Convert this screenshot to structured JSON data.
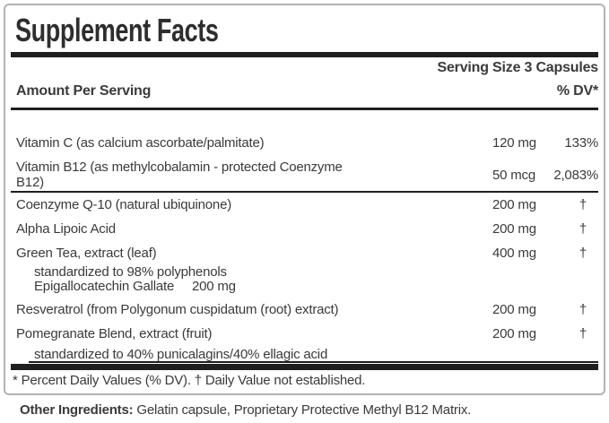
{
  "colors": {
    "text": "#3a3a3a",
    "rule": "#1f1f1f",
    "border": "#b3b3b3",
    "bg": "#ffffff"
  },
  "label": {
    "title": "Supplement Facts",
    "serving_size": "Serving Size 3 Capsules",
    "header": {
      "amount_col": "Amount Per Serving",
      "dv_col": "% DV*"
    },
    "rows": [
      {
        "name": "Vitamin C (as calcium ascorbate/palmitate)",
        "amount": "120 mg",
        "dv": "133%"
      },
      {
        "name": "Vitamin B12 (as methylcobalamin - protected Coenzyme\nB12)",
        "amount": "50 mcg",
        "dv": "2,083%",
        "wrap2": true,
        "divider_after": true
      },
      {
        "name": "Coenzyme Q-10 (natural ubiquinone)",
        "amount": "200 mg",
        "dv": "†"
      },
      {
        "name": "Alpha Lipoic Acid",
        "amount": "200 mg",
        "dv": "†"
      },
      {
        "name": "Green Tea, extract (leaf)",
        "amount": "400 mg",
        "dv": "†"
      },
      {
        "name": "standardized to 98% polyphenols",
        "sub": true
      },
      {
        "name": "Epigallocatechin Gallate     200 mg",
        "sub": true
      },
      {
        "name": "Resveratrol (from Polygonum cuspidatum (root) extract)",
        "amount": "200 mg",
        "dv": "†",
        "gap_before": true
      },
      {
        "name": "Pomegranate Blend, extract (fruit)",
        "amount": "200 mg",
        "dv": "†"
      },
      {
        "name": "standardized to 40% punicalagins/40% ellagic acid",
        "sub": true,
        "underline": true
      }
    ],
    "footnote": "* Percent Daily Values (% DV). † Daily Value not established.",
    "other_ingredients": {
      "label": "Other Ingredients:",
      "text": "Gelatin capsule, Proprietary Protective Methyl B12 Matrix."
    }
  }
}
